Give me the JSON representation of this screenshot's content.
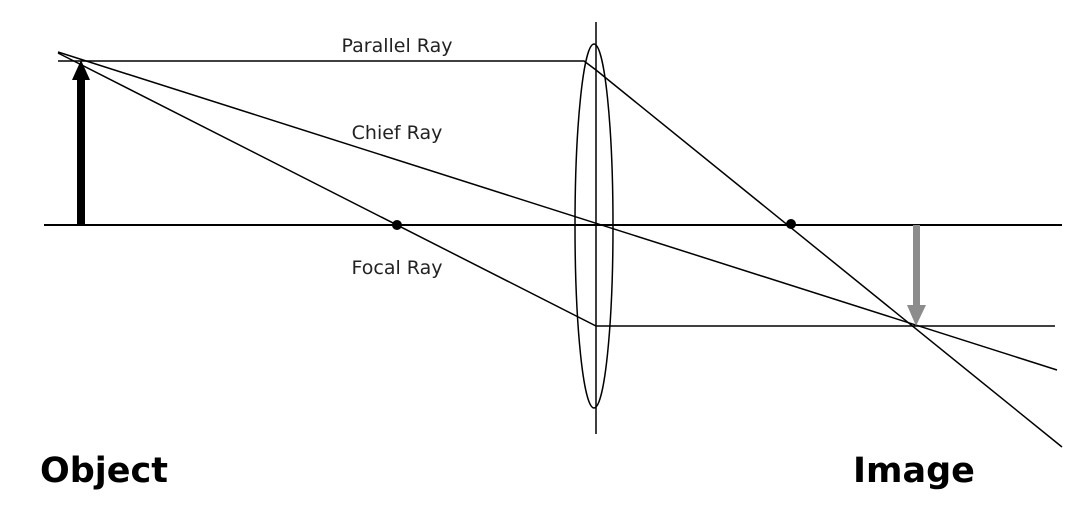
{
  "labels": {
    "parallel_ray": "Parallel Ray",
    "chief_ray": "Chief Ray",
    "focal_ray": "Focal Ray",
    "object": "Object",
    "image": "Image"
  },
  "colors": {
    "object_arrow": "#000000",
    "image_arrow": "#8c8c8c",
    "rays": "#000000",
    "background": "#ffffff"
  }
}
